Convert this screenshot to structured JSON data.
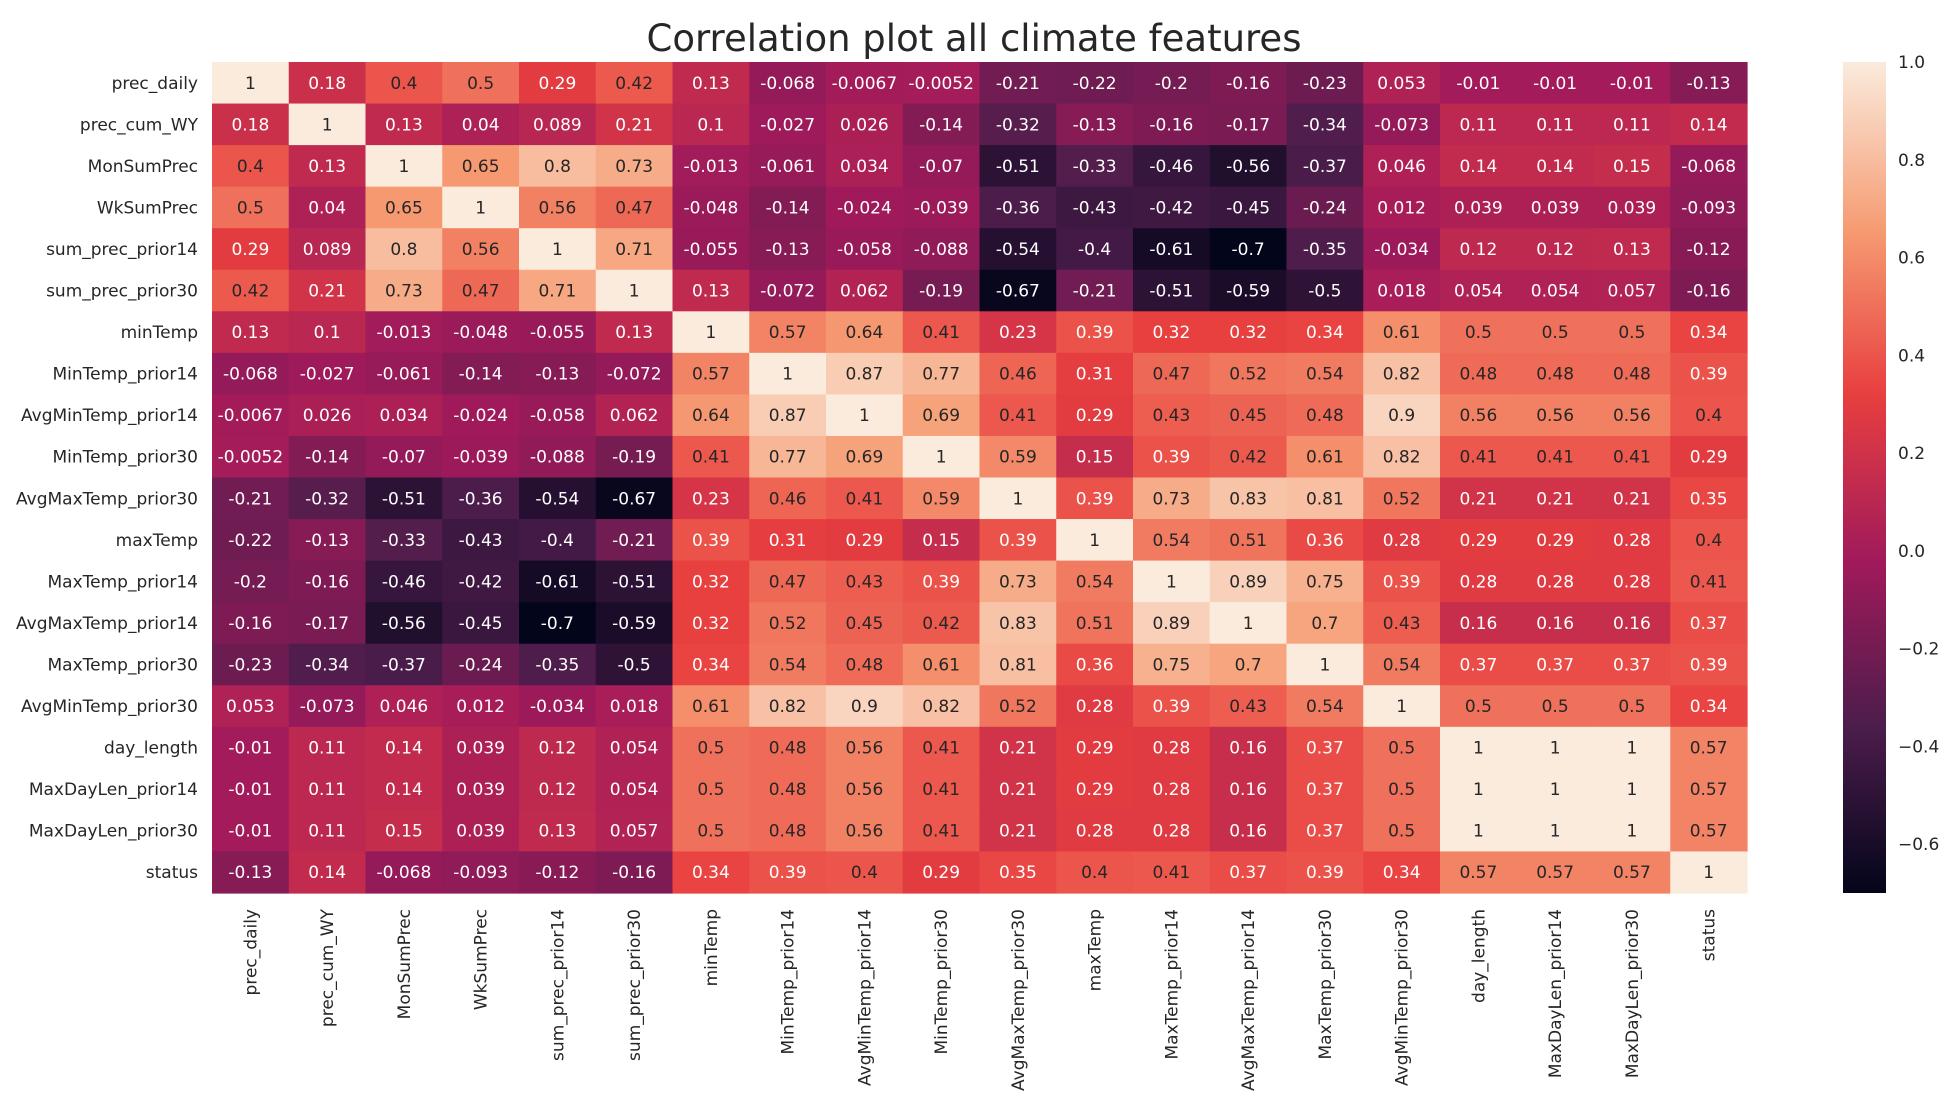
{
  "chart_data": {
    "type": "heatmap",
    "title": "Correlation plot all climate features",
    "xlabel": "",
    "ylabel": "",
    "row_labels": [
      "prec_daily",
      "prec_cum_WY",
      "MonSumPrec",
      "WkSumPrec",
      "sum_prec_prior14",
      "sum_prec_prior30",
      "minTemp",
      "MinTemp_prior14",
      "AvgMinTemp_prior14",
      "MinTemp_prior30",
      "AvgMaxTemp_prior30",
      "maxTemp",
      "MaxTemp_prior14",
      "AvgMaxTemp_prior14",
      "MaxTemp_prior30",
      "AvgMinTemp_prior30",
      "day_length",
      "MaxDayLen_prior14",
      "MaxDayLen_prior30",
      "status"
    ],
    "col_labels": [
      "prec_daily",
      "prec_cum_WY",
      "MonSumPrec",
      "WkSumPrec",
      "sum_prec_prior14",
      "sum_prec_prior30",
      "minTemp",
      "MinTemp_prior14",
      "AvgMinTemp_prior14",
      "MinTemp_prior30",
      "AvgMaxTemp_prior30",
      "maxTemp",
      "MaxTemp_prior14",
      "AvgMaxTemp_prior14",
      "MaxTemp_prior30",
      "AvgMinTemp_prior30",
      "day_length",
      "MaxDayLen_prior14",
      "MaxDayLen_prior30",
      "status"
    ],
    "annotations": [
      [
        "1",
        "0.18",
        "0.4",
        "0.5",
        "0.29",
        "0.42",
        "0.13",
        "-0.068",
        "-0.0067",
        "-0.0052",
        "-0.21",
        "-0.22",
        "-0.2",
        "-0.16",
        "-0.23",
        "0.053",
        "-0.01",
        "-0.01",
        "-0.01",
        "-0.13"
      ],
      [
        "0.18",
        "1",
        "0.13",
        "0.04",
        "0.089",
        "0.21",
        "0.1",
        "-0.027",
        "0.026",
        "-0.14",
        "-0.32",
        "-0.13",
        "-0.16",
        "-0.17",
        "-0.34",
        "-0.073",
        "0.11",
        "0.11",
        "0.11",
        "0.14"
      ],
      [
        "0.4",
        "0.13",
        "1",
        "0.65",
        "0.8",
        "0.73",
        "-0.013",
        "-0.061",
        "0.034",
        "-0.07",
        "-0.51",
        "-0.33",
        "-0.46",
        "-0.56",
        "-0.37",
        "0.046",
        "0.14",
        "0.14",
        "0.15",
        "-0.068"
      ],
      [
        "0.5",
        "0.04",
        "0.65",
        "1",
        "0.56",
        "0.47",
        "-0.048",
        "-0.14",
        "-0.024",
        "-0.039",
        "-0.36",
        "-0.43",
        "-0.42",
        "-0.45",
        "-0.24",
        "0.012",
        "0.039",
        "0.039",
        "0.039",
        "-0.093"
      ],
      [
        "0.29",
        "0.089",
        "0.8",
        "0.56",
        "1",
        "0.71",
        "-0.055",
        "-0.13",
        "-0.058",
        "-0.088",
        "-0.54",
        "-0.4",
        "-0.61",
        "-0.7",
        "-0.35",
        "-0.034",
        "0.12",
        "0.12",
        "0.13",
        "-0.12"
      ],
      [
        "0.42",
        "0.21",
        "0.73",
        "0.47",
        "0.71",
        "1",
        "0.13",
        "-0.072",
        "0.062",
        "-0.19",
        "-0.67",
        "-0.21",
        "-0.51",
        "-0.59",
        "-0.5",
        "0.018",
        "0.054",
        "0.054",
        "0.057",
        "-0.16"
      ],
      [
        "0.13",
        "0.1",
        "-0.013",
        "-0.048",
        "-0.055",
        "0.13",
        "1",
        "0.57",
        "0.64",
        "0.41",
        "0.23",
        "0.39",
        "0.32",
        "0.32",
        "0.34",
        "0.61",
        "0.5",
        "0.5",
        "0.5",
        "0.34"
      ],
      [
        "-0.068",
        "-0.027",
        "-0.061",
        "-0.14",
        "-0.13",
        "-0.072",
        "0.57",
        "1",
        "0.87",
        "0.77",
        "0.46",
        "0.31",
        "0.47",
        "0.52",
        "0.54",
        "0.82",
        "0.48",
        "0.48",
        "0.48",
        "0.39"
      ],
      [
        "-0.0067",
        "0.026",
        "0.034",
        "-0.024",
        "-0.058",
        "0.062",
        "0.64",
        "0.87",
        "1",
        "0.69",
        "0.41",
        "0.29",
        "0.43",
        "0.45",
        "0.48",
        "0.9",
        "0.56",
        "0.56",
        "0.56",
        "0.4"
      ],
      [
        "-0.0052",
        "-0.14",
        "-0.07",
        "-0.039",
        "-0.088",
        "-0.19",
        "0.41",
        "0.77",
        "0.69",
        "1",
        "0.59",
        "0.15",
        "0.39",
        "0.42",
        "0.61",
        "0.82",
        "0.41",
        "0.41",
        "0.41",
        "0.29"
      ],
      [
        "-0.21",
        "-0.32",
        "-0.51",
        "-0.36",
        "-0.54",
        "-0.67",
        "0.23",
        "0.46",
        "0.41",
        "0.59",
        "1",
        "0.39",
        "0.73",
        "0.83",
        "0.81",
        "0.52",
        "0.21",
        "0.21",
        "0.21",
        "0.35"
      ],
      [
        "-0.22",
        "-0.13",
        "-0.33",
        "-0.43",
        "-0.4",
        "-0.21",
        "0.39",
        "0.31",
        "0.29",
        "0.15",
        "0.39",
        "1",
        "0.54",
        "0.51",
        "0.36",
        "0.28",
        "0.29",
        "0.29",
        "0.28",
        "0.4"
      ],
      [
        "-0.2",
        "-0.16",
        "-0.46",
        "-0.42",
        "-0.61",
        "-0.51",
        "0.32",
        "0.47",
        "0.43",
        "0.39",
        "0.73",
        "0.54",
        "1",
        "0.89",
        "0.75",
        "0.39",
        "0.28",
        "0.28",
        "0.28",
        "0.41"
      ],
      [
        "-0.16",
        "-0.17",
        "-0.56",
        "-0.45",
        "-0.7",
        "-0.59",
        "0.32",
        "0.52",
        "0.45",
        "0.42",
        "0.83",
        "0.51",
        "0.89",
        "1",
        "0.7",
        "0.43",
        "0.16",
        "0.16",
        "0.16",
        "0.37"
      ],
      [
        "-0.23",
        "-0.34",
        "-0.37",
        "-0.24",
        "-0.35",
        "-0.5",
        "0.34",
        "0.54",
        "0.48",
        "0.61",
        "0.81",
        "0.36",
        "0.75",
        "0.7",
        "1",
        "0.54",
        "0.37",
        "0.37",
        "0.37",
        "0.39"
      ],
      [
        "0.053",
        "-0.073",
        "0.046",
        "0.012",
        "-0.034",
        "0.018",
        "0.61",
        "0.82",
        "0.9",
        "0.82",
        "0.52",
        "0.28",
        "0.39",
        "0.43",
        "0.54",
        "1",
        "0.5",
        "0.5",
        "0.5",
        "0.34"
      ],
      [
        "-0.01",
        "0.11",
        "0.14",
        "0.039",
        "0.12",
        "0.054",
        "0.5",
        "0.48",
        "0.56",
        "0.41",
        "0.21",
        "0.29",
        "0.28",
        "0.16",
        "0.37",
        "0.5",
        "1",
        "1",
        "1",
        "0.57"
      ],
      [
        "-0.01",
        "0.11",
        "0.14",
        "0.039",
        "0.12",
        "0.054",
        "0.5",
        "0.48",
        "0.56",
        "0.41",
        "0.21",
        "0.29",
        "0.28",
        "0.16",
        "0.37",
        "0.5",
        "1",
        "1",
        "1",
        "0.57"
      ],
      [
        "-0.01",
        "0.11",
        "0.15",
        "0.039",
        "0.13",
        "0.057",
        "0.5",
        "0.48",
        "0.56",
        "0.41",
        "0.21",
        "0.28",
        "0.28",
        "0.16",
        "0.37",
        "0.5",
        "1",
        "1",
        "1",
        "0.57"
      ],
      [
        "-0.13",
        "0.14",
        "-0.068",
        "-0.093",
        "-0.12",
        "-0.16",
        "0.34",
        "0.39",
        "0.4",
        "0.29",
        "0.35",
        "0.4",
        "0.41",
        "0.37",
        "0.39",
        "0.34",
        "0.57",
        "0.57",
        "0.57",
        "1"
      ]
    ],
    "colorbar": {
      "vmin": -0.7,
      "vmax": 1.0,
      "ticks": [
        1.0,
        0.8,
        0.6,
        0.4,
        0.2,
        0.0,
        -0.2,
        -0.4,
        -0.6
      ],
      "tick_labels": [
        "1.0",
        "0.8",
        "0.6",
        "0.4",
        "0.2",
        "0.0",
        "−0.2",
        "−0.4",
        "−0.6"
      ],
      "colormap": "rocket",
      "stops": [
        "#03051a",
        "#4c1d4b",
        "#a11a5b",
        "#e83f3f",
        "#f69c73",
        "#faebdd"
      ]
    },
    "grid": false,
    "legend": "colorbar-right"
  }
}
